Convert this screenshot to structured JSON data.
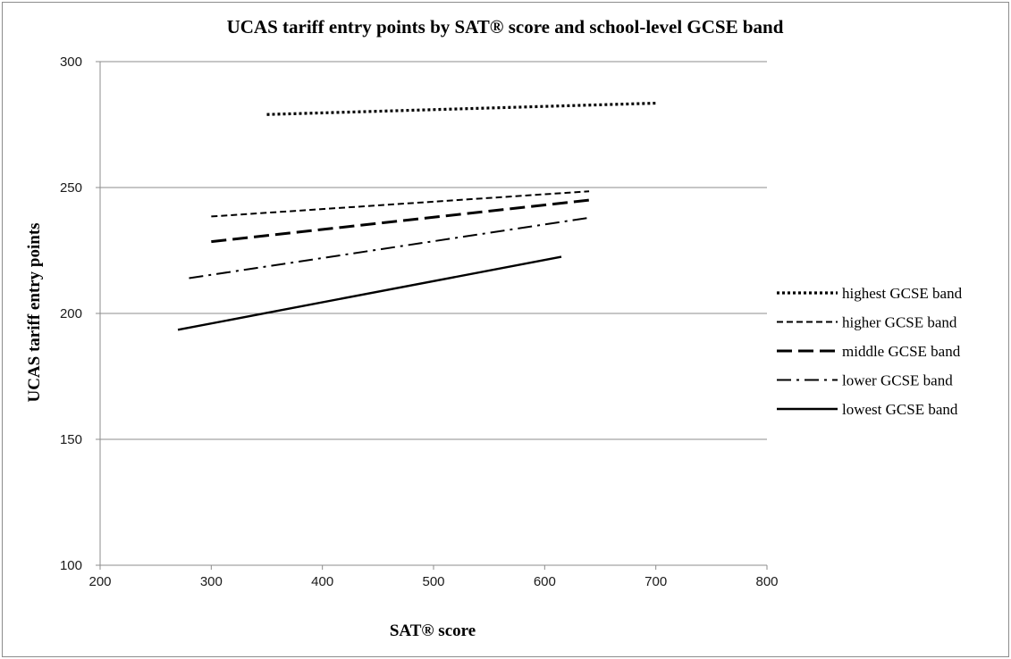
{
  "chart_data": {
    "type": "line",
    "title": "UCAS tariff entry points by SAT® score and school-level GCSE band",
    "xlabel": "SAT® score",
    "ylabel": "UCAS tariff entry points",
    "xlim": [
      200,
      800
    ],
    "ylim": [
      100,
      300
    ],
    "xticks": [
      200,
      300,
      400,
      500,
      600,
      700,
      800
    ],
    "yticks": [
      100,
      150,
      200,
      250,
      300
    ],
    "grid": "horizontal major gridlines",
    "legend_position": "right",
    "series": [
      {
        "name": "highest GCSE band",
        "style": "dotted",
        "x": [
          350,
          700
        ],
        "y": [
          279,
          283.5
        ]
      },
      {
        "name": "higher GCSE band",
        "style": "short-dash",
        "x": [
          300,
          640
        ],
        "y": [
          238.5,
          248.5
        ]
      },
      {
        "name": "middle GCSE band",
        "style": "long-dash",
        "x": [
          300,
          640
        ],
        "y": [
          228.5,
          245
        ]
      },
      {
        "name": "lower GCSE band",
        "style": "dash-dot",
        "x": [
          280,
          640
        ],
        "y": [
          214,
          238
        ]
      },
      {
        "name": "lowest GCSE band",
        "style": "solid",
        "x": [
          270,
          615
        ],
        "y": [
          193.5,
          222.5
        ]
      }
    ]
  }
}
